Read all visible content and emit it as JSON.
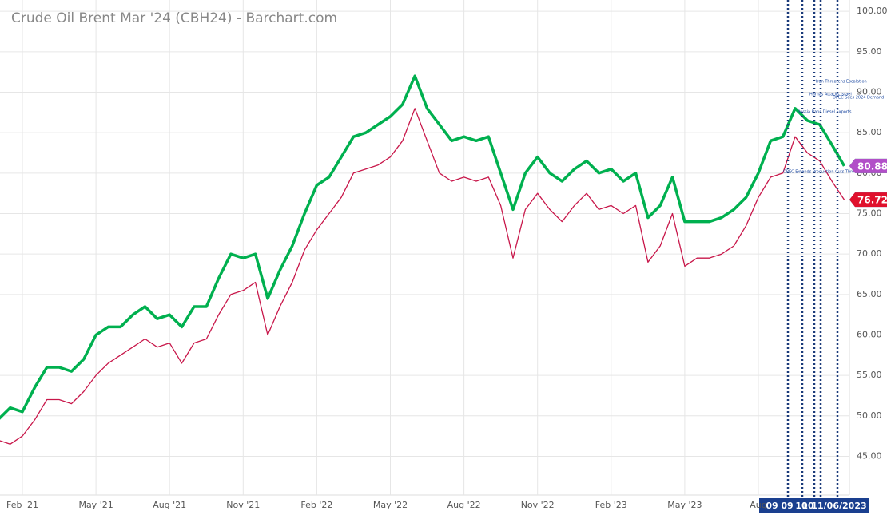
{
  "chart_data": {
    "type": "line",
    "title": "Crude Oil Brent Mar '24 (CBH24) - Barchart.com",
    "categories": [
      null,
      null,
      "Feb '21",
      null,
      null,
      null,
      null,
      null,
      "May '21",
      null,
      null,
      null,
      null,
      null,
      "Aug '21",
      null,
      null,
      null,
      null,
      null,
      "Nov '21",
      null,
      null,
      null,
      null,
      null,
      "Feb '22",
      null,
      null,
      null,
      null,
      null,
      "May '22",
      null,
      null,
      null,
      null,
      null,
      "Aug '22",
      null,
      null,
      null,
      null,
      null,
      "Nov '22",
      null,
      null,
      null,
      null,
      null,
      "Feb '23",
      null,
      null,
      null,
      null,
      null,
      "May '23",
      null,
      null,
      null,
      null,
      null,
      "Aug",
      null,
      null,
      null,
      null,
      null,
      null,
      null
    ],
    "series": [
      {
        "color": "#00b04f",
        "values": [
          49.5,
          51,
          50.5,
          53.5,
          56,
          56,
          55.5,
          57,
          60,
          61,
          61,
          62.5,
          63.5,
          62,
          62.5,
          61,
          63.5,
          63.5,
          67,
          70,
          69.5,
          70,
          64.5,
          68,
          71,
          75,
          78.5,
          79.5,
          82,
          84.5,
          85,
          86,
          87,
          88.5,
          92,
          88,
          86,
          84,
          84.5,
          84,
          84.5,
          80,
          75.5,
          80,
          82,
          80,
          79,
          80.5,
          81.5,
          80,
          80.5,
          79,
          80,
          74.5,
          76,
          79.5,
          74,
          74,
          74,
          74.5,
          75.5,
          77,
          80,
          84,
          84.5,
          88,
          86.5,
          86,
          83.5,
          80.88
        ]
      },
      {
        "color": "#c8174a",
        "values": [
          47,
          46.5,
          47.5,
          49.5,
          52,
          52,
          51.5,
          53,
          55,
          56.5,
          57.5,
          58.5,
          59.5,
          58.5,
          59,
          56.5,
          59,
          59.5,
          62.5,
          65,
          65.5,
          66.5,
          60,
          63.5,
          66.5,
          70.5,
          73,
          75,
          77,
          80,
          80.5,
          81,
          82,
          84,
          88,
          84,
          80,
          79,
          79.5,
          79,
          79.5,
          76,
          69.5,
          75.5,
          77.5,
          75.5,
          74,
          76,
          77.5,
          75.5,
          76,
          75,
          76,
          69,
          71,
          75,
          68.5,
          69.5,
          69.5,
          70,
          71,
          73.5,
          77,
          79.5,
          80,
          84.5,
          82.5,
          81.5,
          79,
          76.72
        ]
      }
    ],
    "ylim": [
      41,
      101.4
    ],
    "yticks": [
      {
        "value": 100,
        "label": "100.00"
      },
      {
        "value": 95,
        "label": "95.00"
      },
      {
        "value": 90,
        "label": "90.00"
      },
      {
        "value": 85,
        "label": "85.00"
      },
      {
        "value": 80,
        "label": "80.00"
      },
      {
        "value": 75,
        "label": "75.00"
      },
      {
        "value": 70,
        "label": "70.00"
      },
      {
        "value": 65,
        "label": "65.00"
      },
      {
        "value": 60,
        "label": "60.00"
      },
      {
        "value": 55,
        "label": "55.00"
      },
      {
        "value": 50,
        "label": "50.00"
      },
      {
        "value": 45,
        "label": "45.00"
      }
    ],
    "grid": true,
    "price_badges": [
      {
        "value": 80.88,
        "color": "#00b04f"
      },
      {
        "value": 80.88,
        "color": "#b24fc8"
      },
      {
        "value": 76.72,
        "color": "#2e86de"
      },
      {
        "value": 76.72,
        "color": "#e0102c"
      }
    ],
    "events": [
      {
        "date_label": "09",
        "annotation": "OPEC Extends Production Cuts Through December"
      },
      {
        "date_label": "09",
        "annotation": "Russia Bans Diesel Exports"
      },
      {
        "date_label": "10",
        "annotation": "Hamas Attacks Israel"
      },
      {
        "date_label": "10",
        "annotation": "Iran Threatens Escalation"
      },
      {
        "date_label": "11/06/2023",
        "annotation": "OPEC Sees 2024 Demand"
      }
    ]
  }
}
